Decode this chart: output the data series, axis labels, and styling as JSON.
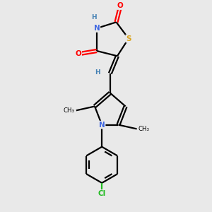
{
  "bg_color": "#e9e9e9",
  "bond_color": "#000000",
  "atom_colors": {
    "N": "#4169E1",
    "S": "#DAA520",
    "O": "#FF0000",
    "Cl": "#22BB22",
    "H": "#4682B4",
    "C": "#000000"
  },
  "figsize": [
    3.0,
    3.0
  ],
  "dpi": 100,
  "lw": 1.6
}
